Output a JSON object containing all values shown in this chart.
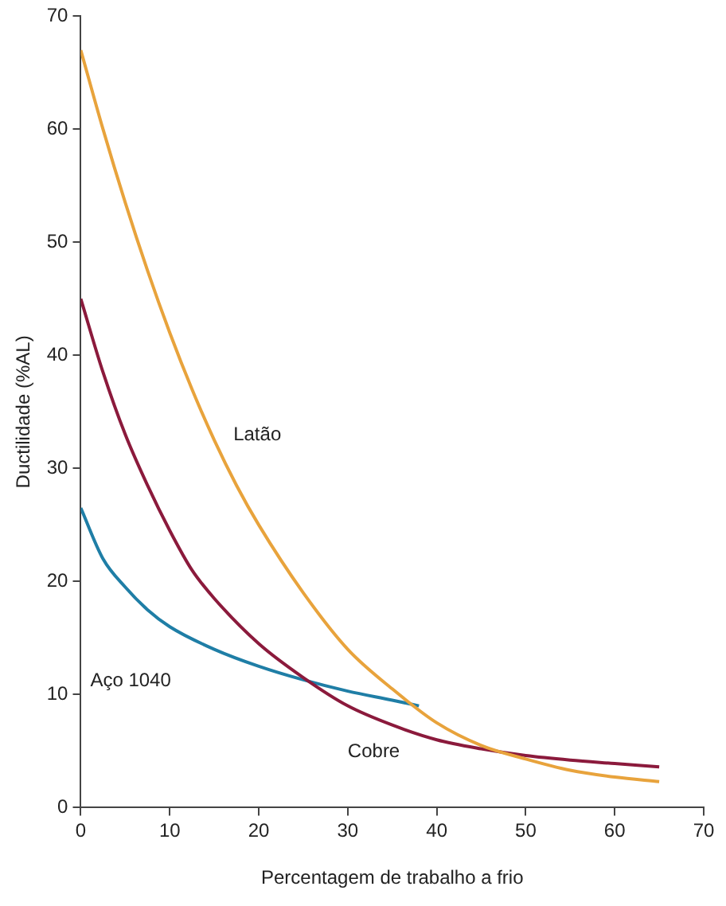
{
  "chart_data": {
    "type": "line",
    "xlabel": "Percentagem de trabalho a frio",
    "ylabel": "Ductilidade (%AL)",
    "xlim": [
      0,
      70
    ],
    "xticks": [
      0,
      10,
      20,
      30,
      40,
      50,
      60,
      70
    ],
    "ylim": [
      0,
      70
    ],
    "yticks": [
      0,
      10,
      20,
      30,
      40,
      50,
      60,
      70
    ],
    "grid": false,
    "legend": false,
    "marker": "none",
    "line_style": "solid",
    "series": [
      {
        "name": "Latão",
        "color": "#e8a33c",
        "x": [
          0,
          2.5,
          5,
          7.5,
          10,
          12.5,
          15,
          17.5,
          20,
          25,
          30,
          35,
          40,
          45,
          50,
          55,
          60,
          65
        ],
        "values": [
          67,
          60,
          53.5,
          47.5,
          42,
          37,
          32.5,
          28.5,
          25,
          19,
          14,
          10.5,
          7.5,
          5.5,
          4.3,
          3.3,
          2.7,
          2.3
        ]
      },
      {
        "name": "Cobre",
        "color": "#8b1a3c",
        "x": [
          0,
          2.5,
          5,
          7.5,
          10,
          12.5,
          15,
          20,
          25,
          30,
          35,
          40,
          45,
          50,
          55,
          60,
          65
        ],
        "values": [
          45,
          38.5,
          33,
          28.5,
          24.5,
          21,
          18.5,
          14.5,
          11.5,
          9,
          7.3,
          6,
          5.2,
          4.6,
          4.2,
          3.9,
          3.6
        ]
      },
      {
        "name": "Aço 1040",
        "color": "#1f7ea6",
        "x": [
          0,
          2.5,
          5,
          7.5,
          10,
          15,
          20,
          25,
          30,
          35,
          38
        ],
        "values": [
          26.5,
          22,
          19.5,
          17.5,
          16,
          14,
          12.5,
          11.3,
          10.3,
          9.5,
          9
        ]
      }
    ]
  }
}
